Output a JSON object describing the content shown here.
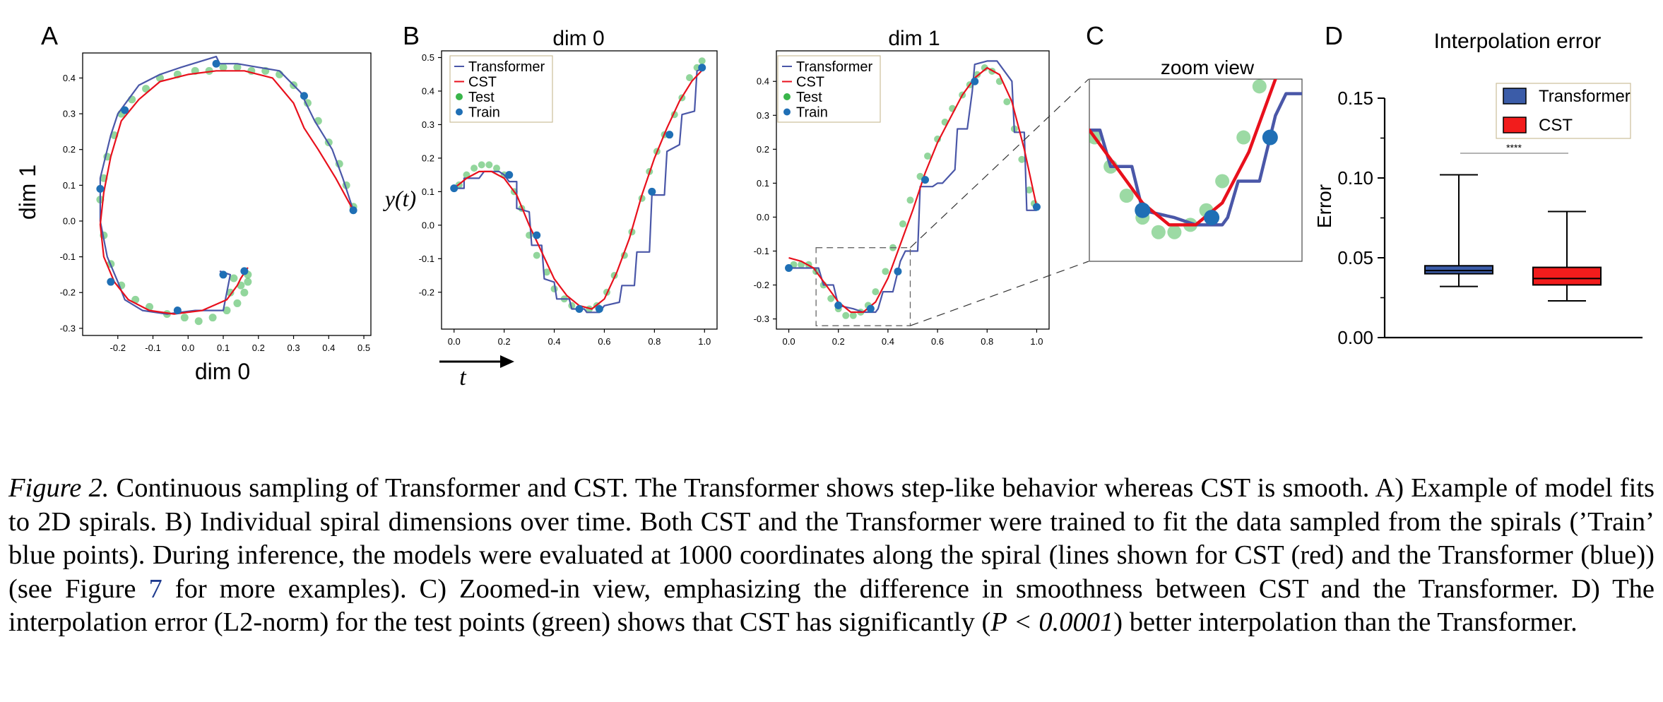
{
  "figure": {
    "panel_letters": [
      "A",
      "B",
      "C",
      "D"
    ],
    "panel_b_titles": [
      "dim 0",
      "dim 1"
    ],
    "panel_c_title": "zoom view",
    "panel_a_xlabel": "dim 0",
    "panel_a_ylabel": "dim 1",
    "panel_b_ylabel": "y(t)",
    "panel_b_xlabel": "t",
    "legend": [
      "Transformer",
      "CST",
      "Test",
      "Train"
    ]
  },
  "caption": {
    "lead": "Figure 2.",
    "sentence1": " Continuous sampling of Transformer and CST. The Transformer shows step-like behavior whereas CST is smooth. A) Example of model fits to 2D spirals. B) Individual spiral dimensions over time. Both CST and the Transformer were trained to fit the data sampled from the spirals (’Train’ blue points). During inference, the models were evaluated at 1000 coordinates along the spiral (lines shown for CST (red) and the Transformer (blue)) (see Figure ",
    "figref": "7",
    "sentence2": " for more examples). C) Zoomed-in view, emphasizing the difference in smoothness between CST and the Transformer. D) The interpolation error (L2-norm) for the test points (green) shows that CST has significantly (",
    "pvalue": "P < 0.0001",
    "sentence3": ") better interpolation than the Transformer."
  },
  "colors": {
    "transformer": "#4a57a8",
    "cst": "#e8101c",
    "test": "#39b54a",
    "train": "#1f6fb5",
    "box_transformer": "#3b5ca8",
    "box_cst": "#f21c1c"
  },
  "chart_data": [
    {
      "type": "line",
      "panel": "A",
      "xlabel": "dim 0",
      "ylabel": "dim 1",
      "xlim": [
        -0.3,
        0.52
      ],
      "ylim": [
        -0.32,
        0.47
      ],
      "xticks": [
        -0.2,
        -0.1,
        0.0,
        0.1,
        0.2,
        0.3,
        0.4,
        0.5
      ],
      "yticks": [
        -0.3,
        -0.2,
        -0.1,
        0.0,
        0.1,
        0.2,
        0.3,
        0.4
      ],
      "series": [
        {
          "name": "Transformer",
          "x": [
            0.47,
            0.44,
            0.41,
            0.36,
            0.34,
            0.32,
            0.26,
            0.2,
            0.14,
            0.09,
            0.08,
            -0.02,
            -0.08,
            -0.14,
            -0.17,
            -0.2,
            -0.22,
            -0.25,
            -0.25,
            -0.23,
            -0.2,
            -0.18,
            -0.13,
            -0.06,
            0.02,
            0.1,
            0.12,
            0.09
          ],
          "y": [
            0.03,
            0.12,
            0.2,
            0.28,
            0.32,
            0.36,
            0.42,
            0.43,
            0.44,
            0.44,
            0.46,
            0.43,
            0.41,
            0.38,
            0.34,
            0.3,
            0.24,
            0.12,
            0.0,
            -0.1,
            -0.17,
            -0.22,
            -0.25,
            -0.26,
            -0.25,
            -0.25,
            -0.15,
            -0.14
          ]
        },
        {
          "name": "CST",
          "x": [
            0.47,
            0.42,
            0.37,
            0.33,
            0.3,
            0.24,
            0.16,
            0.08,
            0.0,
            -0.08,
            -0.14,
            -0.19,
            -0.22,
            -0.24,
            -0.25,
            -0.24,
            -0.21,
            -0.17,
            -0.11,
            -0.04,
            0.04,
            0.11,
            0.14,
            0.15,
            0.17
          ],
          "y": [
            0.03,
            0.12,
            0.2,
            0.26,
            0.33,
            0.4,
            0.42,
            0.42,
            0.41,
            0.39,
            0.34,
            0.28,
            0.18,
            0.08,
            -0.01,
            -0.1,
            -0.17,
            -0.22,
            -0.25,
            -0.26,
            -0.25,
            -0.22,
            -0.18,
            -0.16,
            -0.13
          ]
        }
      ],
      "test_points": {
        "x": [
          -0.25,
          -0.24,
          -0.23,
          -0.21,
          -0.19,
          -0.16,
          -0.12,
          -0.08,
          -0.03,
          0.02,
          0.06,
          0.1,
          0.14,
          0.18,
          0.22,
          0.26,
          0.3,
          0.34,
          0.37,
          0.4,
          0.43,
          0.45,
          0.47,
          -0.24,
          -0.22,
          -0.19,
          -0.15,
          -0.11,
          -0.06,
          -0.01,
          0.03,
          0.07,
          0.11,
          0.14,
          0.16,
          0.17,
          0.16,
          0.13,
          0.12,
          0.15,
          0.17
        ],
        "y": [
          0.06,
          0.12,
          0.18,
          0.24,
          0.3,
          0.34,
          0.37,
          0.4,
          0.41,
          0.42,
          0.42,
          0.43,
          0.43,
          0.42,
          0.42,
          0.41,
          0.38,
          0.33,
          0.28,
          0.22,
          0.16,
          0.1,
          0.04,
          -0.04,
          -0.12,
          -0.18,
          -0.22,
          -0.24,
          -0.26,
          -0.27,
          -0.28,
          -0.27,
          -0.25,
          -0.23,
          -0.2,
          -0.17,
          -0.14,
          -0.16,
          -0.2,
          -0.18,
          -0.15
        ]
      },
      "train_points": {
        "x": [
          -0.25,
          -0.18,
          -0.22,
          -0.03,
          0.1,
          0.16,
          0.33,
          0.47,
          0.08
        ],
        "y": [
          0.09,
          0.31,
          -0.17,
          -0.25,
          -0.15,
          -0.14,
          0.35,
          0.03,
          0.44
        ]
      }
    },
    {
      "type": "line",
      "panel": "B",
      "title": "dim 0",
      "xlabel": "t",
      "ylabel": "y(t)",
      "xlim": [
        -0.05,
        1.05
      ],
      "ylim": [
        -0.31,
        0.52
      ],
      "xticks": [
        0.0,
        0.2,
        0.4,
        0.6,
        0.8,
        1.0
      ],
      "yticks": [
        -0.2,
        -0.1,
        0.0,
        0.1,
        0.2,
        0.3,
        0.4,
        0.5
      ],
      "series": [
        {
          "name": "Transformer",
          "x": [
            0.0,
            0.04,
            0.04,
            0.1,
            0.12,
            0.18,
            0.2,
            0.22,
            0.25,
            0.25,
            0.3,
            0.31,
            0.35,
            0.36,
            0.4,
            0.41,
            0.46,
            0.47,
            0.52,
            0.53,
            0.58,
            0.6,
            0.66,
            0.67,
            0.72,
            0.73,
            0.78,
            0.79,
            0.84,
            0.85,
            0.9,
            0.91,
            0.96,
            0.97,
            1.0
          ],
          "y": [
            0.11,
            0.11,
            0.14,
            0.14,
            0.16,
            0.16,
            0.15,
            0.13,
            0.13,
            0.05,
            0.04,
            -0.06,
            -0.06,
            -0.16,
            -0.17,
            -0.22,
            -0.22,
            -0.25,
            -0.25,
            -0.26,
            -0.26,
            -0.24,
            -0.23,
            -0.18,
            -0.18,
            -0.08,
            -0.08,
            0.09,
            0.09,
            0.22,
            0.24,
            0.33,
            0.34,
            0.46,
            0.47
          ]
        },
        {
          "name": "CST",
          "x": [
            0.0,
            0.05,
            0.1,
            0.15,
            0.2,
            0.25,
            0.3,
            0.35,
            0.4,
            0.45,
            0.5,
            0.55,
            0.6,
            0.65,
            0.7,
            0.75,
            0.8,
            0.85,
            0.9,
            0.95,
            1.0
          ],
          "y": [
            0.11,
            0.14,
            0.16,
            0.16,
            0.14,
            0.09,
            0.0,
            -0.08,
            -0.16,
            -0.21,
            -0.24,
            -0.25,
            -0.22,
            -0.14,
            -0.04,
            0.09,
            0.2,
            0.29,
            0.37,
            0.43,
            0.47
          ]
        }
      ],
      "test_points": {
        "x": [
          0.02,
          0.05,
          0.08,
          0.11,
          0.14,
          0.17,
          0.2,
          0.24,
          0.27,
          0.3,
          0.33,
          0.37,
          0.4,
          0.44,
          0.47,
          0.5,
          0.54,
          0.57,
          0.61,
          0.64,
          0.68,
          0.71,
          0.75,
          0.78,
          0.81,
          0.84,
          0.88,
          0.91,
          0.94,
          0.97,
          0.99
        ],
        "y": [
          0.12,
          0.15,
          0.17,
          0.18,
          0.18,
          0.17,
          0.15,
          0.1,
          0.05,
          -0.03,
          -0.09,
          -0.14,
          -0.19,
          -0.22,
          -0.24,
          -0.25,
          -0.25,
          -0.24,
          -0.2,
          -0.15,
          -0.09,
          -0.02,
          0.08,
          0.16,
          0.22,
          0.27,
          0.33,
          0.38,
          0.44,
          0.47,
          0.49
        ]
      },
      "train_points": {
        "x": [
          0.0,
          0.22,
          0.33,
          0.5,
          0.58,
          0.79,
          0.86,
          0.99
        ],
        "y": [
          0.11,
          0.15,
          -0.03,
          -0.25,
          -0.25,
          0.1,
          0.27,
          0.47
        ]
      }
    },
    {
      "type": "line",
      "panel": "B",
      "title": "dim 1",
      "xlim": [
        -0.05,
        1.05
      ],
      "ylim": [
        -0.33,
        0.49
      ],
      "xticks": [
        0.0,
        0.2,
        0.4,
        0.6,
        0.8,
        1.0
      ],
      "yticks": [
        -0.3,
        -0.2,
        -0.1,
        0.0,
        0.1,
        0.2,
        0.3,
        0.4
      ],
      "series": [
        {
          "name": "Transformer",
          "x": [
            0.0,
            0.08,
            0.12,
            0.14,
            0.18,
            0.2,
            0.26,
            0.3,
            0.32,
            0.35,
            0.36,
            0.38,
            0.42,
            0.45,
            0.47,
            0.52,
            0.53,
            0.58,
            0.6,
            0.62,
            0.67,
            0.68,
            0.72,
            0.74,
            0.75,
            0.8,
            0.84,
            0.9,
            0.91,
            0.95,
            0.96,
            1.0
          ],
          "y": [
            -0.15,
            -0.15,
            -0.15,
            -0.2,
            -0.2,
            -0.26,
            -0.27,
            -0.28,
            -0.28,
            -0.28,
            -0.27,
            -0.22,
            -0.22,
            -0.13,
            -0.1,
            -0.1,
            0.09,
            0.09,
            0.1,
            0.1,
            0.14,
            0.26,
            0.26,
            0.37,
            0.45,
            0.46,
            0.46,
            0.4,
            0.25,
            0.25,
            0.02,
            0.02
          ]
        },
        {
          "name": "CST",
          "x": [
            0.0,
            0.05,
            0.1,
            0.15,
            0.2,
            0.25,
            0.3,
            0.35,
            0.4,
            0.45,
            0.5,
            0.55,
            0.6,
            0.65,
            0.7,
            0.75,
            0.8,
            0.85,
            0.9,
            0.95,
            1.0
          ],
          "y": [
            -0.12,
            -0.13,
            -0.15,
            -0.2,
            -0.25,
            -0.28,
            -0.28,
            -0.25,
            -0.18,
            -0.08,
            0.02,
            0.13,
            0.22,
            0.29,
            0.36,
            0.41,
            0.44,
            0.42,
            0.34,
            0.2,
            0.03
          ]
        }
      ],
      "test_points": {
        "x": [
          0.02,
          0.05,
          0.08,
          0.11,
          0.14,
          0.17,
          0.2,
          0.23,
          0.26,
          0.29,
          0.32,
          0.35,
          0.39,
          0.42,
          0.46,
          0.49,
          0.53,
          0.56,
          0.6,
          0.63,
          0.66,
          0.7,
          0.73,
          0.76,
          0.79,
          0.82,
          0.85,
          0.88,
          0.91,
          0.94,
          0.97,
          0.99
        ],
        "y": [
          -0.14,
          -0.14,
          -0.14,
          -0.16,
          -0.2,
          -0.24,
          -0.27,
          -0.29,
          -0.29,
          -0.28,
          -0.26,
          -0.22,
          -0.16,
          -0.09,
          -0.02,
          0.05,
          0.12,
          0.18,
          0.23,
          0.28,
          0.32,
          0.36,
          0.39,
          0.42,
          0.44,
          0.43,
          0.4,
          0.34,
          0.26,
          0.17,
          0.08,
          0.04
        ]
      },
      "train_points": {
        "x": [
          0.0,
          0.2,
          0.33,
          0.44,
          0.55,
          0.75,
          1.0
        ],
        "y": [
          -0.15,
          -0.26,
          -0.27,
          -0.16,
          0.11,
          0.4,
          0.03
        ]
      }
    },
    {
      "type": "line",
      "panel": "C",
      "title": "zoom view"
    },
    {
      "type": "bar",
      "panel": "D",
      "title": "Interpolation error",
      "ylabel": "Error",
      "ylim": [
        0.0,
        0.15
      ],
      "yticks": [
        "0.00",
        "0.05",
        "0.10",
        "0.15"
      ],
      "significance": "****",
      "series": [
        {
          "name": "Transformer",
          "min": 0.032,
          "q1": 0.04,
          "median": 0.042,
          "q3": 0.045,
          "max": 0.102
        },
        {
          "name": "CST",
          "min": 0.023,
          "q1": 0.033,
          "median": 0.037,
          "q3": 0.044,
          "max": 0.079
        }
      ]
    }
  ]
}
